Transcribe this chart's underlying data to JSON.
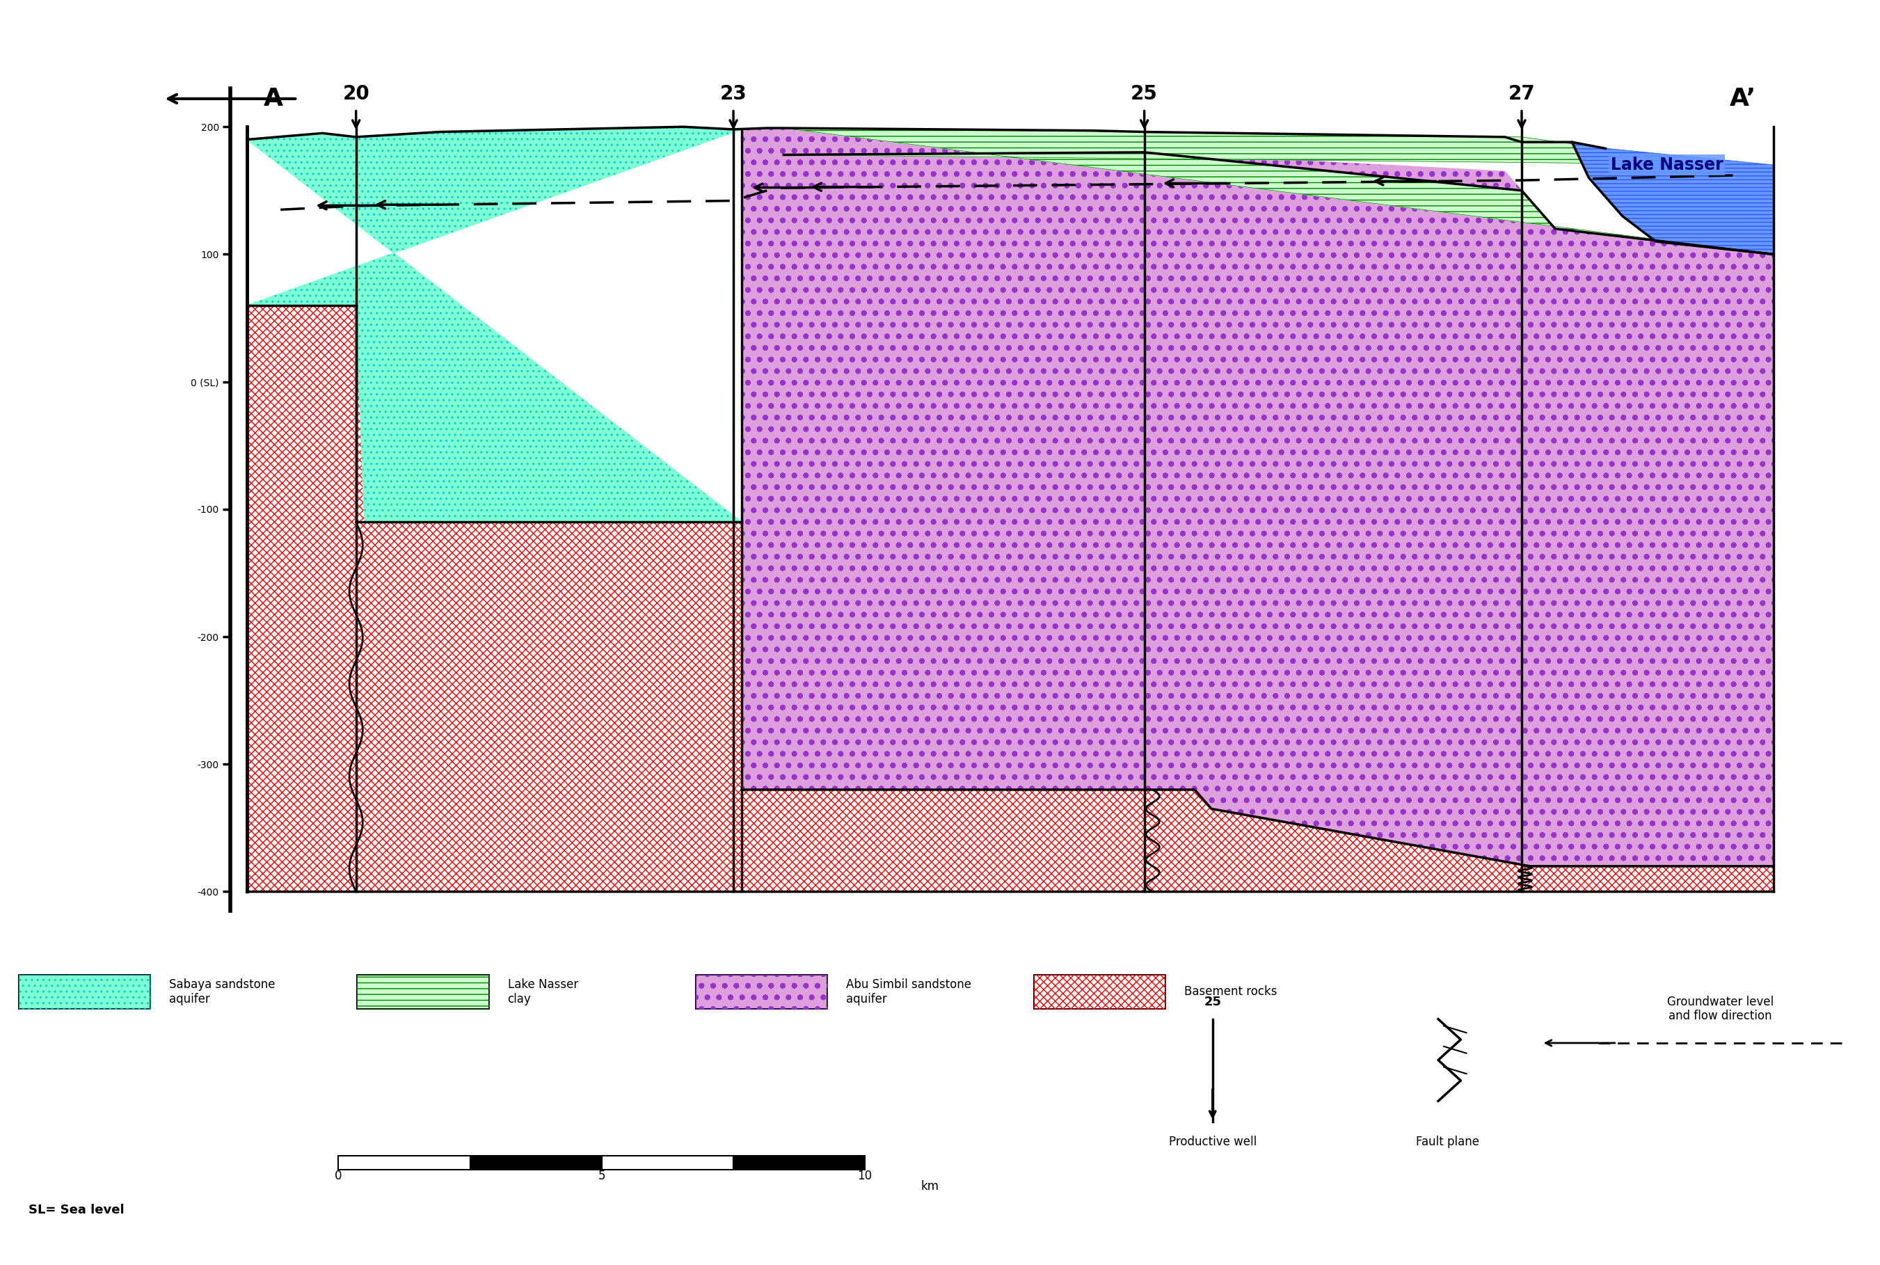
{
  "colors": {
    "sabaya": "#7FFFD4",
    "lake_clay": "#CCFFCC",
    "abu_simbil": "#DDA0DD",
    "basement": "#FFFFFF",
    "lake_water": "#6699FF",
    "background": "#FFFFFF"
  },
  "yticks": [
    200,
    100,
    0,
    -100,
    -200,
    -300,
    -400
  ],
  "ytick_labels": [
    "200",
    "100",
    "0 (SL)",
    "-100",
    "-200",
    "-300",
    "-400"
  ],
  "section_left": "A",
  "section_right": "A’",
  "well_labels": [
    "20",
    "23",
    "25",
    "27"
  ],
  "lake_label": "Lake Nasser",
  "legend_labels": [
    "Sabaya sandstone\naquifer",
    "Lake Nasser\nclay",
    "Abu Simbil sandstone\naquifer",
    "Basement rocks"
  ],
  "sl_label": "SL= Sea level",
  "productive_well_label": "Productive well",
  "fault_plane_label": "Fault plane",
  "gw_label": "Groundwater level\nand flow direction"
}
